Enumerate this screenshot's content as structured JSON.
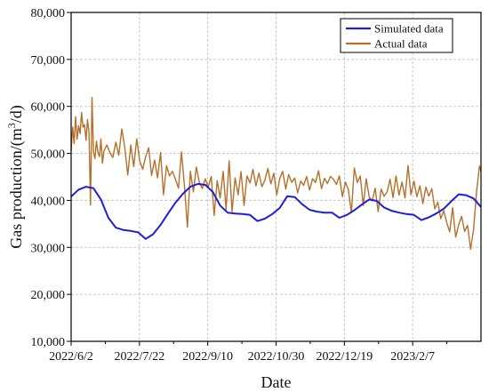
{
  "chart_data": {
    "type": "line",
    "xlabel": "Date",
    "ylabel": "Gas production/(m",
    "ylabel_sup": "3",
    "ylabel_tail": "/d)",
    "x_ticks": [
      "2022/6/2",
      "2022/7/22",
      "2022/9/10",
      "2022/10/30",
      "2022/12/19",
      "2023/2/7"
    ],
    "x_range_days": [
      0,
      275
    ],
    "ylim": [
      10000,
      80000
    ],
    "y_ticks": [
      10000,
      20000,
      30000,
      40000,
      50000,
      60000,
      70000,
      80000
    ],
    "y_tick_labels": [
      "10,000",
      "20,000",
      "30,000",
      "40,000",
      "50,000",
      "60,000",
      "70,000",
      "80,000"
    ],
    "grid": true,
    "legend_position": "top-right",
    "series": [
      {
        "name": "Simulated data",
        "color": "#1f1fd6",
        "x": [
          0,
          5,
          10,
          15,
          20,
          25,
          30,
          35,
          40,
          45,
          50,
          55,
          60,
          65,
          70,
          75,
          80,
          85,
          90,
          95,
          100,
          105,
          110,
          115,
          120,
          125,
          130,
          135,
          140,
          145,
          150,
          155,
          160,
          165,
          170,
          175,
          180,
          185,
          190,
          195,
          200,
          205,
          210,
          215,
          220,
          225,
          230,
          235,
          240,
          245,
          250,
          255,
          260,
          265,
          270,
          275
        ],
        "y": [
          40800,
          42300,
          42900,
          42600,
          40200,
          36300,
          34200,
          33700,
          33500,
          33200,
          31800,
          32800,
          34800,
          37200,
          39500,
          41400,
          42900,
          43500,
          43300,
          41800,
          38900,
          37400,
          37200,
          37100,
          36900,
          35600,
          36100,
          37100,
          38400,
          40900,
          40700,
          39200,
          38000,
          37600,
          37400,
          37400,
          36300,
          36900,
          37900,
          39100,
          40200,
          39900,
          38500,
          37800,
          37400,
          37100,
          36900,
          35800,
          36400,
          37200,
          38200,
          39800,
          41300,
          41100,
          40400,
          38600
        ]
      },
      {
        "name": "Actual data",
        "color": "#b5702a",
        "x": [
          0,
          1,
          2,
          3,
          4,
          5,
          6,
          7,
          8,
          9,
          10,
          11,
          12,
          13,
          14,
          15,
          16,
          17,
          18,
          19,
          20,
          21,
          22,
          24,
          26,
          28,
          30,
          32,
          34,
          36,
          38,
          40,
          42,
          44,
          46,
          48,
          50,
          52,
          54,
          56,
          58,
          60,
          62,
          64,
          66,
          68,
          70,
          72,
          74,
          76,
          78,
          80,
          82,
          84,
          86,
          88,
          90,
          92,
          94,
          96,
          98,
          100,
          102,
          104,
          106,
          108,
          110,
          112,
          114,
          116,
          118,
          120,
          122,
          124,
          126,
          128,
          130,
          132,
          134,
          136,
          138,
          140,
          142,
          144,
          146,
          148,
          150,
          152,
          154,
          156,
          158,
          160,
          162,
          164,
          166,
          168,
          170,
          172,
          174,
          176,
          178,
          180,
          182,
          184,
          186,
          188,
          190,
          192,
          194,
          196,
          198,
          200,
          202,
          204,
          206,
          208,
          210,
          212,
          214,
          216,
          218,
          220,
          222,
          224,
          226,
          228,
          230,
          232,
          234,
          236,
          238,
          240,
          242,
          244,
          246,
          248,
          250,
          252,
          254,
          256,
          258,
          260,
          262,
          264,
          266,
          268,
          270,
          272,
          274,
          275
        ],
        "y": [
          50500,
          55600,
          52100,
          57800,
          53000,
          55900,
          54200,
          58700,
          55600,
          56100,
          52800,
          57200,
          54500,
          39000,
          61900,
          50400,
          48900,
          52600,
          50100,
          49300,
          53100,
          47900,
          50500,
          51800,
          50200,
          49100,
          52400,
          49600,
          55200,
          51300,
          45400,
          51800,
          47200,
          53100,
          48400,
          46600,
          49300,
          51200,
          45300,
          48600,
          44800,
          50200,
          41200,
          47400,
          45200,
          46200,
          44500,
          42600,
          50300,
          43200,
          34300,
          46200,
          41800,
          47100,
          43800,
          42500,
          44600,
          42800,
          45100,
          36800,
          44200,
          40500,
          46200,
          38100,
          48400,
          37600,
          44800,
          41200,
          46100,
          38900,
          45200,
          43700,
          46600,
          43100,
          45800,
          42900,
          44300,
          46800,
          43500,
          45800,
          41200,
          44700,
          46200,
          42400,
          45500,
          43800,
          44800,
          41600,
          44100,
          43200,
          45100,
          42200,
          44600,
          43800,
          46300,
          42500,
          44700,
          43600,
          45100,
          44500,
          43400,
          45200,
          40800,
          43900,
          42300,
          37400,
          46900,
          43800,
          45200,
          38900,
          44600,
          40700,
          39900,
          42600,
          37600,
          42400,
          40900,
          41800,
          44500,
          40600,
          45200,
          41100,
          43900,
          40500,
          47400,
          41200,
          44100,
          40800,
          43100,
          39300,
          42800,
          40900,
          42500,
          38200,
          39600,
          36100,
          37800,
          35300,
          33300,
          38500,
          32200,
          34800,
          36600,
          33400,
          34700,
          29600,
          33700,
          41800,
          47300,
          46200
        ]
      }
    ]
  }
}
